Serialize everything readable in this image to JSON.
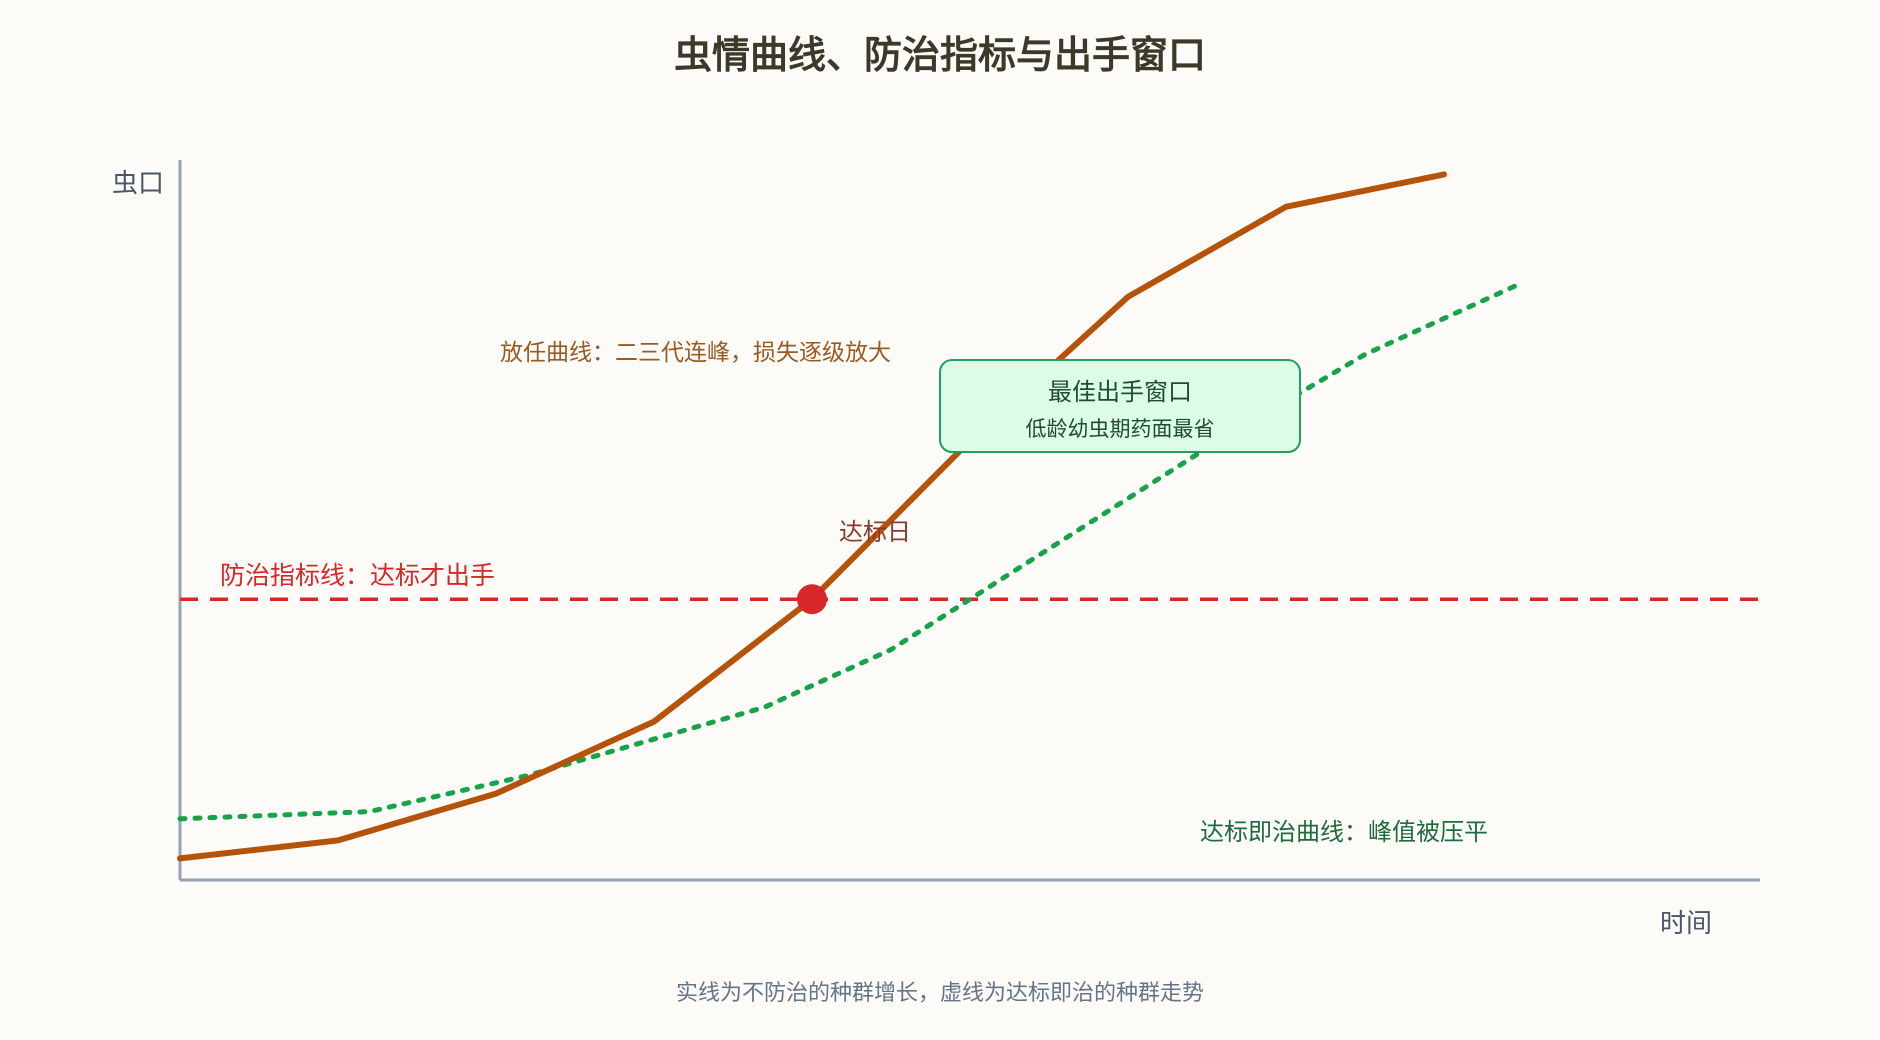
{
  "chart_data": {
    "type": "line",
    "title": "虫情曲线、防治指标与出手窗口",
    "ylabel": "虫口",
    "xlabel": "时间",
    "note": "实线为不防治的种群增长，虚线为达标即治的种群走势",
    "xlim": [
      0,
      10
    ],
    "ylim": [
      0,
      10
    ],
    "threshold": {
      "y": 3.9,
      "label": "防治指标线：达标才出手",
      "color": "#d62828"
    },
    "threshold_point": {
      "x": 4,
      "y": 3.9,
      "label": "达标日",
      "color": "#d62828"
    },
    "series": [
      {
        "label": "放任曲线：二三代连峰，损失逐级放大",
        "color": "#b45309",
        "style": "solid",
        "x": [
          0,
          1,
          2,
          3,
          4,
          5,
          6,
          7,
          8
        ],
        "y": [
          0.3,
          0.55,
          1.2,
          2.2,
          3.9,
          6.1,
          8.1,
          9.35,
          9.8
        ]
      },
      {
        "label": "达标即治曲线：峰值被压平",
        "color": "#16a34a",
        "style": "dotted",
        "x": [
          0,
          1.2,
          2.2,
          3.7,
          4.5,
          5.5,
          6.5,
          7.5,
          8.5
        ],
        "y": [
          0.85,
          0.95,
          1.45,
          2.4,
          3.2,
          4.6,
          6.0,
          7.3,
          8.3
        ]
      }
    ],
    "annotation_box": {
      "title": "最佳出手窗口",
      "subtitle": "低龄幼虫期药面最省",
      "fill": "#dcfce7",
      "stroke": "#22a05a"
    }
  }
}
